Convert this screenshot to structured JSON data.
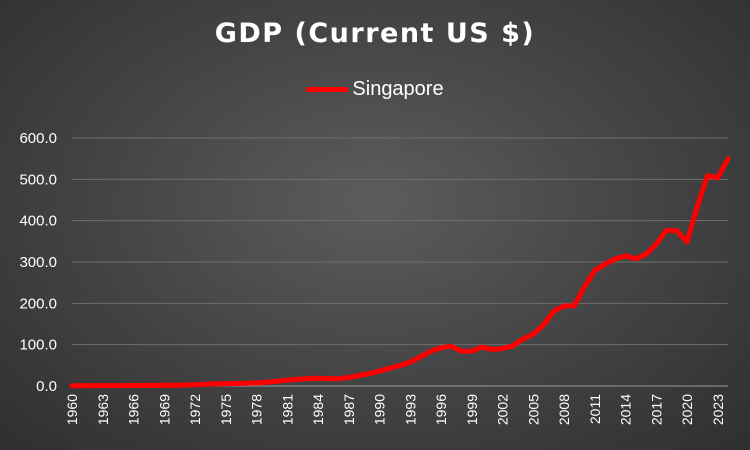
{
  "chart_data": {
    "type": "line",
    "title": "GDP (Current US $)",
    "xlabel": "",
    "ylabel": "",
    "ylim": [
      0,
      600
    ],
    "yticks": [
      "0.0",
      "100.0",
      "200.0",
      "300.0",
      "400.0",
      "500.0",
      "600.0"
    ],
    "ytick_values": [
      0,
      100,
      200,
      300,
      400,
      500,
      600
    ],
    "xtick_labels": [
      "1960",
      "1963",
      "1966",
      "1969",
      "1972",
      "1975",
      "1978",
      "1981",
      "1984",
      "1987",
      "1990",
      "1993",
      "1996",
      "1999",
      "2002",
      "2005",
      "2008",
      "2011",
      "2014",
      "2017",
      "2020",
      "2023"
    ],
    "legend_position": "top-center",
    "grid": true,
    "series": [
      {
        "name": "Singapore",
        "color": "#ff0000",
        "x": [
          1960,
          1961,
          1962,
          1963,
          1964,
          1965,
          1966,
          1967,
          1968,
          1969,
          1970,
          1971,
          1972,
          1973,
          1974,
          1975,
          1976,
          1977,
          1978,
          1979,
          1980,
          1981,
          1982,
          1983,
          1984,
          1985,
          1986,
          1987,
          1988,
          1989,
          1990,
          1991,
          1992,
          1993,
          1994,
          1995,
          1996,
          1997,
          1998,
          1999,
          2000,
          2001,
          2002,
          2003,
          2004,
          2005,
          2006,
          2007,
          2008,
          2009,
          2010,
          2011,
          2012,
          2013,
          2014,
          2015,
          2016,
          2017,
          2018,
          2019,
          2020,
          2021,
          2022,
          2023,
          2024
        ],
        "values": [
          0.7,
          0.8,
          0.9,
          0.9,
          0.9,
          1.0,
          1.1,
          1.2,
          1.4,
          1.6,
          1.9,
          2.3,
          2.8,
          4.0,
          5.2,
          5.6,
          6.0,
          6.5,
          7.5,
          9.3,
          11.9,
          14.2,
          16.1,
          17.8,
          18.9,
          17.9,
          17.9,
          20.6,
          25.3,
          30.0,
          36.1,
          43.3,
          49.7,
          57.9,
          71.0,
          84.3,
          92.3,
          96.4,
          84.1,
          84.3,
          94.0,
          88.6,
          90.8,
          97.0,
          113.6,
          125.9,
          147.8,
          180.9,
          193.6,
          194.2,
          240.0,
          279.4,
          295.1,
          307.6,
          314.9,
          308.0,
          318.8,
          343.3,
          376.9,
          375.5,
          348.4,
          434.1,
          509.0,
          504.0,
          550.0
        ]
      }
    ]
  }
}
